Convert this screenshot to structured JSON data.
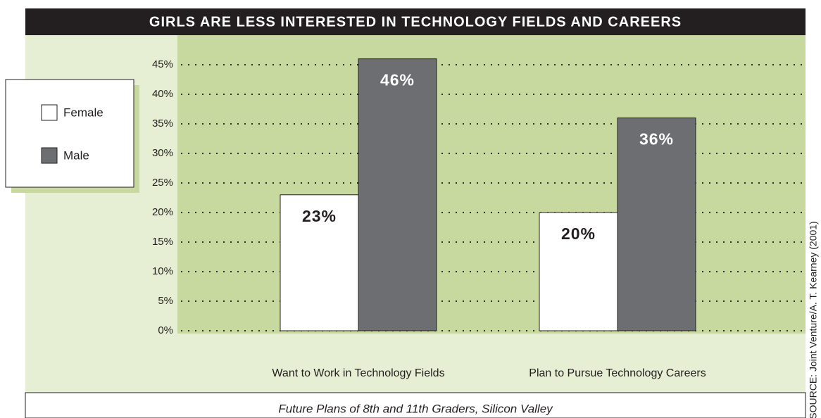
{
  "chart_data": {
    "type": "bar",
    "title": "GIRLS ARE LESS INTERESTED IN TECHNOLOGY FIELDS AND CAREERS",
    "caption": "Future Plans of 8th and 11th Graders, Silicon Valley",
    "source": "SOURCE: Joint Venture/A. T. Kearney (2001)",
    "categories": [
      "Want to Work in Technology Fields",
      "Plan to Pursue Technology Careers"
    ],
    "series": [
      {
        "name": "Female",
        "color": "#ffffff",
        "values": [
          23,
          20
        ],
        "value_labels": [
          "23%",
          "20%"
        ]
      },
      {
        "name": "Male",
        "color": "#6d6e71",
        "values": [
          46,
          36
        ],
        "value_labels": [
          "46%",
          "36%"
        ]
      }
    ],
    "ylim": [
      0,
      45
    ],
    "yticks": [
      {
        "value": 0,
        "label": "0%"
      },
      {
        "value": 5,
        "label": "5%"
      },
      {
        "value": 10,
        "label": "10%"
      },
      {
        "value": 15,
        "label": "15%"
      },
      {
        "value": 20,
        "label": "20%"
      },
      {
        "value": 25,
        "label": "25%"
      },
      {
        "value": 30,
        "label": "30%"
      },
      {
        "value": 35,
        "label": "35%"
      },
      {
        "value": 40,
        "label": "40%"
      },
      {
        "value": 45,
        "label": "45%"
      }
    ],
    "grid": true
  }
}
